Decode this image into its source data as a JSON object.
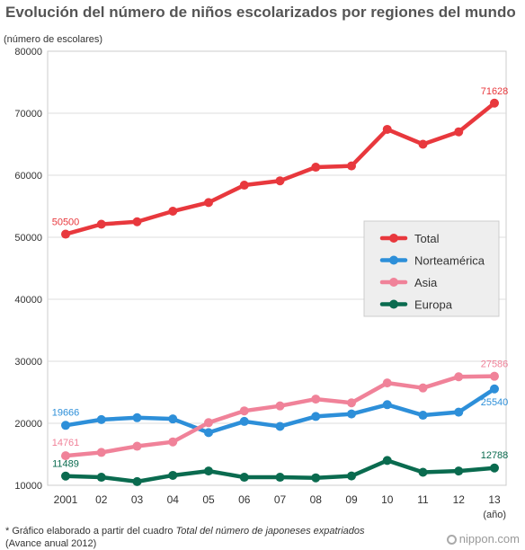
{
  "title": "Evolución del número de niños escolarizados por regiones del mundo",
  "footnote": {
    "prefix": "* Gráfico elaborado a partir del cuadro ",
    "source_italic": "Total del número de japoneses expatriados",
    "line2": "(Avance anual 2012)"
  },
  "logo": "nippon.com",
  "chart_data": {
    "type": "line",
    "ylabel": "(número de escolares)",
    "xlabel": "(año)",
    "x": [
      "2001",
      "02",
      "03",
      "04",
      "05",
      "06",
      "07",
      "08",
      "09",
      "10",
      "11",
      "12",
      "13"
    ],
    "ylim": [
      10000,
      80000
    ],
    "yticks": [
      10000,
      20000,
      30000,
      40000,
      50000,
      60000,
      70000,
      80000
    ],
    "grid": true,
    "legend_position": "right-middle",
    "series": [
      {
        "name": "Total",
        "color": "#e8383d",
        "values": [
          50500,
          52100,
          52500,
          54200,
          55600,
          58400,
          59100,
          61300,
          61500,
          67400,
          65000,
          67000,
          71628
        ],
        "labels": [
          {
            "index": 0,
            "text": "50500"
          },
          {
            "index": 12,
            "text": "71628"
          }
        ]
      },
      {
        "name": "Norteamérica",
        "color": "#2d8fd9",
        "values": [
          19666,
          20600,
          20900,
          20700,
          18500,
          20300,
          19500,
          21100,
          21500,
          23000,
          21300,
          21800,
          25540
        ],
        "labels": [
          {
            "index": 0,
            "text": "19666"
          },
          {
            "index": 12,
            "text": "25540"
          }
        ]
      },
      {
        "name": "Asia",
        "color": "#f08299",
        "values": [
          14761,
          15300,
          16300,
          17000,
          20100,
          22000,
          22800,
          23900,
          23300,
          26500,
          25700,
          27500,
          27586
        ],
        "labels": [
          {
            "index": 0,
            "text": "14761"
          },
          {
            "index": 12,
            "text": "27586"
          }
        ]
      },
      {
        "name": "Europa",
        "color": "#0a6b4f",
        "values": [
          11489,
          11300,
          10600,
          11600,
          12300,
          11300,
          11300,
          11200,
          11500,
          14000,
          12100,
          12300,
          12788
        ],
        "labels": [
          {
            "index": 0,
            "text": "11489"
          },
          {
            "index": 12,
            "text": "12788"
          }
        ]
      }
    ]
  }
}
